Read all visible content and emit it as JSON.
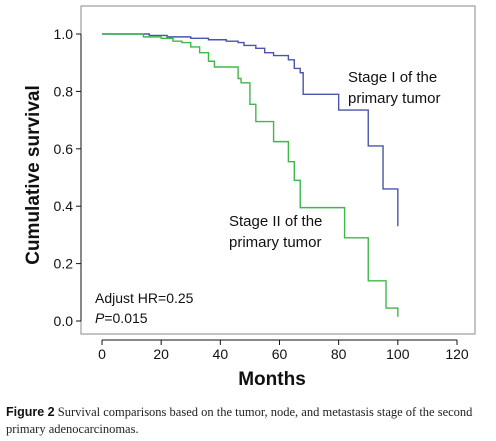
{
  "chart_data": {
    "type": "line",
    "title": "",
    "xlabel": "Months",
    "ylabel": "Cumulative survival",
    "xlim": [
      0,
      120
    ],
    "ylim": [
      0,
      1
    ],
    "xticks": [
      "0",
      "20",
      "40",
      "60",
      "80",
      "100",
      "120"
    ],
    "yticks": [
      "0.0",
      "0.2",
      "0.4",
      "0.6",
      "0.8",
      "1.0"
    ],
    "grid": false,
    "series": [
      {
        "name": "Stage I of the primary tumor",
        "label_lines": [
          "Stage I of the",
          "primary tumor"
        ],
        "color": "#4a55a8",
        "step": true,
        "points": [
          [
            0,
            1.0
          ],
          [
            16,
            1.0
          ],
          [
            16,
            0.995
          ],
          [
            22,
            0.995
          ],
          [
            22,
            0.99
          ],
          [
            30,
            0.99
          ],
          [
            30,
            0.985
          ],
          [
            36,
            0.985
          ],
          [
            36,
            0.98
          ],
          [
            42,
            0.98
          ],
          [
            42,
            0.975
          ],
          [
            46,
            0.975
          ],
          [
            46,
            0.97
          ],
          [
            48,
            0.97
          ],
          [
            48,
            0.96
          ],
          [
            52,
            0.96
          ],
          [
            52,
            0.95
          ],
          [
            55,
            0.95
          ],
          [
            55,
            0.935
          ],
          [
            58,
            0.935
          ],
          [
            58,
            0.925
          ],
          [
            63,
            0.925
          ],
          [
            63,
            0.91
          ],
          [
            65,
            0.91
          ],
          [
            65,
            0.88
          ],
          [
            67,
            0.88
          ],
          [
            67,
            0.865
          ],
          [
            68,
            0.865
          ],
          [
            68,
            0.79
          ],
          [
            80,
            0.79
          ],
          [
            80,
            0.735
          ],
          [
            90,
            0.735
          ],
          [
            90,
            0.61
          ],
          [
            95,
            0.61
          ],
          [
            95,
            0.46
          ],
          [
            100,
            0.46
          ],
          [
            100,
            0.33
          ]
        ]
      },
      {
        "name": "Stage II of the primary tumor",
        "label_lines": [
          "Stage II of the",
          "primary tumor"
        ],
        "color": "#3fb84a",
        "step": true,
        "points": [
          [
            0,
            1.0
          ],
          [
            14,
            1.0
          ],
          [
            14,
            0.99
          ],
          [
            20,
            0.99
          ],
          [
            20,
            0.985
          ],
          [
            24,
            0.985
          ],
          [
            24,
            0.975
          ],
          [
            27,
            0.975
          ],
          [
            27,
            0.97
          ],
          [
            30,
            0.97
          ],
          [
            30,
            0.955
          ],
          [
            33,
            0.955
          ],
          [
            33,
            0.935
          ],
          [
            36,
            0.935
          ],
          [
            36,
            0.905
          ],
          [
            38,
            0.905
          ],
          [
            38,
            0.885
          ],
          [
            46,
            0.885
          ],
          [
            46,
            0.845
          ],
          [
            47,
            0.845
          ],
          [
            47,
            0.83
          ],
          [
            50,
            0.83
          ],
          [
            50,
            0.755
          ],
          [
            52,
            0.755
          ],
          [
            52,
            0.695
          ],
          [
            58,
            0.695
          ],
          [
            58,
            0.625
          ],
          [
            63,
            0.625
          ],
          [
            63,
            0.555
          ],
          [
            65,
            0.555
          ],
          [
            65,
            0.49
          ],
          [
            67,
            0.49
          ],
          [
            67,
            0.395
          ],
          [
            82,
            0.395
          ],
          [
            82,
            0.29
          ],
          [
            90,
            0.29
          ],
          [
            90,
            0.14
          ],
          [
            96,
            0.14
          ],
          [
            96,
            0.045
          ],
          [
            100,
            0.045
          ],
          [
            100,
            0.015
          ]
        ]
      }
    ],
    "annotations": [
      "Adjust HR=0.25",
      "P=0.015"
    ]
  },
  "stats": {
    "hr": "Adjust HR=0.25",
    "p_symbol": "P",
    "p_rest": "=0.015"
  },
  "caption": {
    "figure": "Figure 2",
    "text": " Survival comparisons based on the tumor, node, and metastasis stage of the second primary adenocarcinomas."
  }
}
